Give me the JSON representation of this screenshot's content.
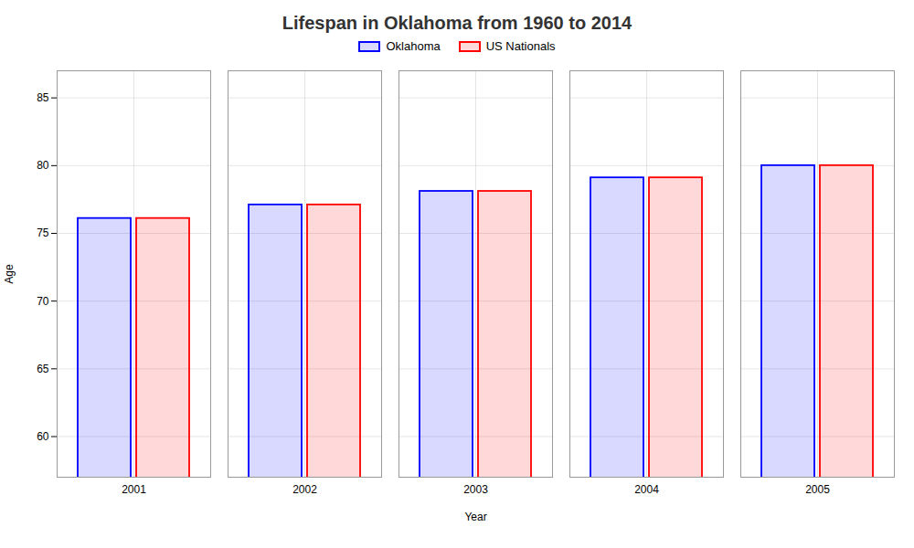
{
  "chart_data": {
    "type": "bar",
    "title": "Lifespan in Oklahoma from 1960 to 2014",
    "xlabel": "Year",
    "ylabel": "Age",
    "categories": [
      "2001",
      "2002",
      "2003",
      "2004",
      "2005"
    ],
    "series": [
      {
        "name": "Oklahoma",
        "color": "#0000ff",
        "values": [
          76.1,
          77.1,
          78.1,
          79.1,
          80.0
        ]
      },
      {
        "name": "US Nationals",
        "color": "#ff0000",
        "values": [
          76.1,
          77.1,
          78.1,
          79.1,
          80.0
        ]
      }
    ],
    "ylim": [
      57,
      87
    ],
    "yticks": [
      60,
      65,
      70,
      75,
      80,
      85
    ],
    "grid": true,
    "legend": "top"
  }
}
